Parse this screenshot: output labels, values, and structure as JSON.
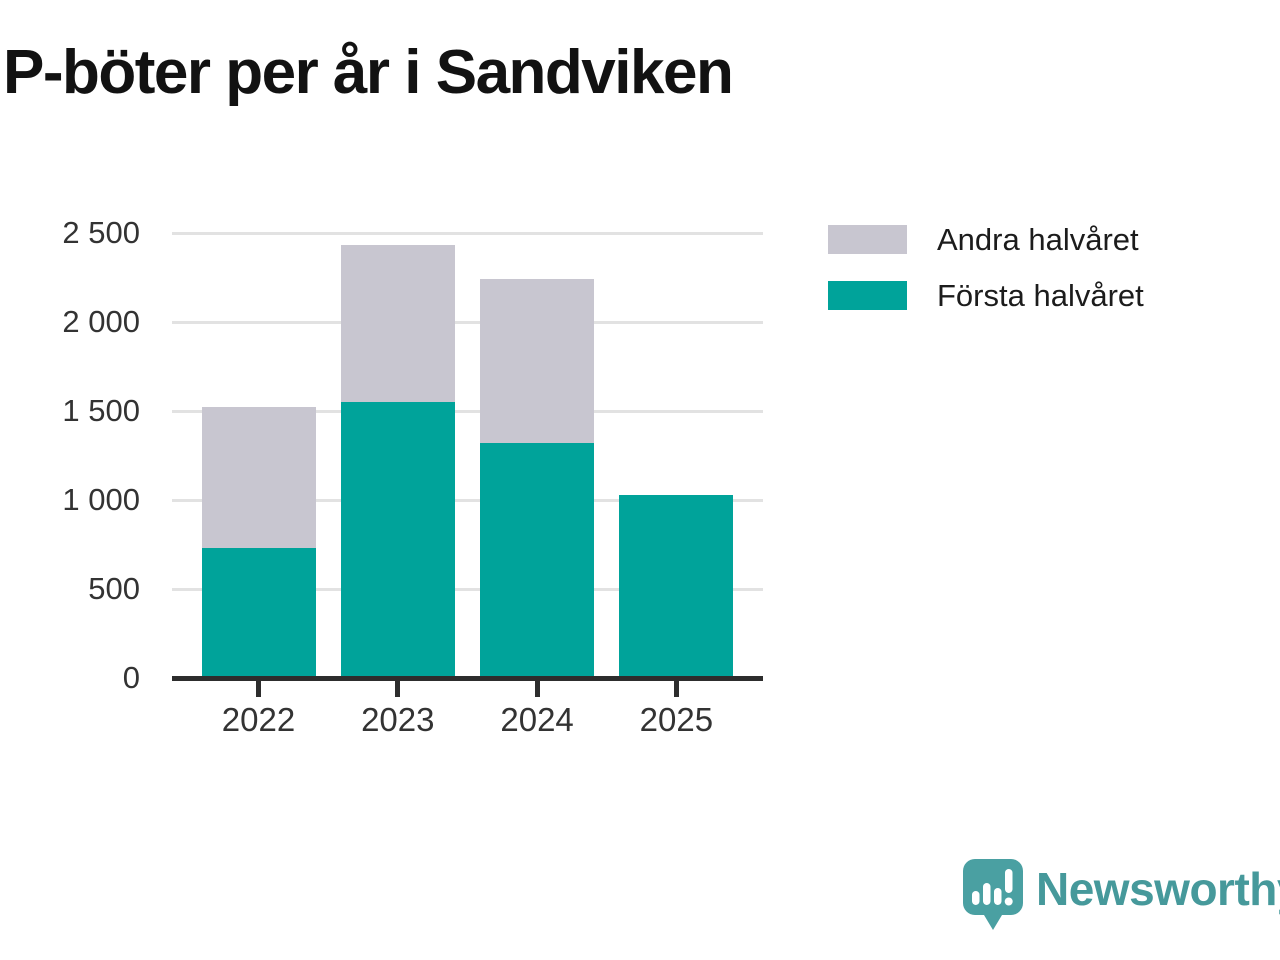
{
  "title": "P-böter per år i Sandviken",
  "colors": {
    "first_half": "#00a39a",
    "second_half": "#c8c6d0",
    "grid": "#e2e2e2",
    "axis": "#2d2d2d",
    "tick_text": "#333333",
    "title_text": "#121212",
    "logo": "#46999b",
    "logo_icon_fill": "#4aa0a2"
  },
  "legend": [
    {
      "label": "Andra halvåret",
      "color": "#c8c6d0"
    },
    {
      "label": "Första halvåret",
      "color": "#00a39a"
    }
  ],
  "chart_data": {
    "type": "bar",
    "stacked": true,
    "title": "P-böter per år i Sandviken",
    "categories": [
      "2022",
      "2023",
      "2024",
      "2025"
    ],
    "series": [
      {
        "name": "Första halvåret",
        "color": "#00a39a",
        "values": [
          730,
          1550,
          1320,
          1030
        ]
      },
      {
        "name": "Andra halvåret",
        "color": "#c8c6d0",
        "values": [
          790,
          880,
          920,
          0
        ]
      }
    ],
    "totals": [
      1520,
      2430,
      2240,
      1030
    ],
    "xlabel": "",
    "ylabel": "",
    "ylim": [
      0,
      2500
    ],
    "ytick_interval": 500,
    "ytick_labels": [
      "0",
      "500",
      "1 000",
      "1 500",
      "2 000",
      "2 500"
    ],
    "grid": true,
    "legend_position": "top-right"
  },
  "branding": {
    "logo_text": "Newsworthy",
    "logo_icon": "bar-chart-speech-bubble-icon"
  }
}
